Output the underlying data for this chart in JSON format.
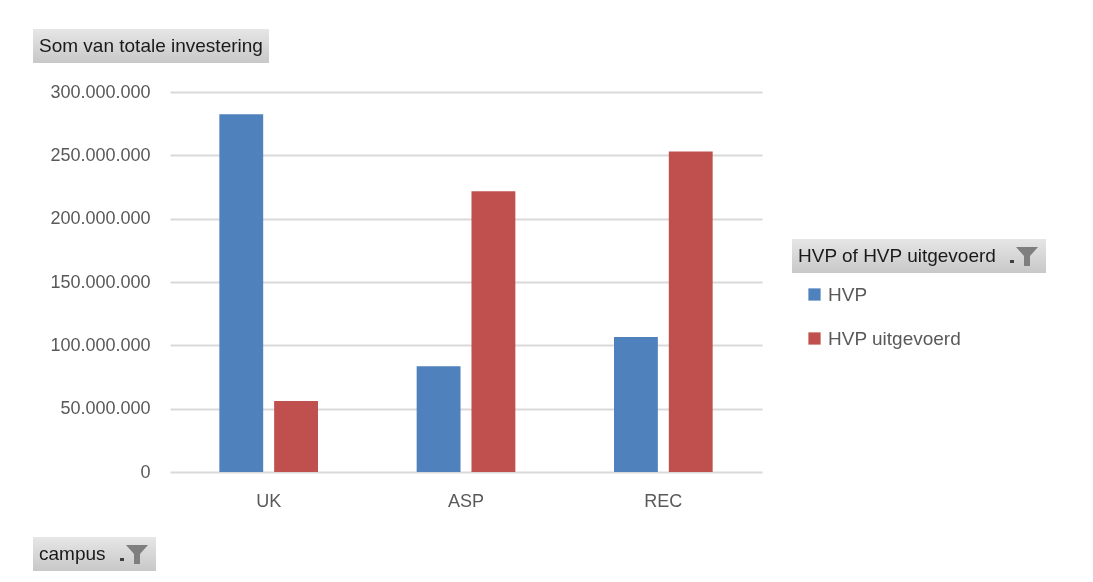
{
  "chart_data": {
    "type": "bar",
    "title": "Som van totale investering",
    "xlabel": "campus",
    "legend_title": "HVP of HVP uitgevoerd",
    "categories": [
      "UK",
      "ASP",
      "REC"
    ],
    "series": [
      {
        "name": "HVP",
        "color": "#4f81bd",
        "values": [
          282500000,
          83400000,
          106600000
        ]
      },
      {
        "name": "HVP uitgevoerd",
        "color": "#c0504d",
        "values": [
          56000000,
          221700000,
          253000000
        ]
      }
    ],
    "ylim": [
      0,
      300000000
    ],
    "yticks": [
      0,
      {
        "value": 50000000,
        "label": "50.000.000"
      },
      {
        "value": 100000000,
        "label": "100.000.000"
      },
      {
        "value": 150000000,
        "label": "150.000.000"
      },
      {
        "value": 200000000,
        "label": "200.000.000"
      },
      {
        "value": 250000000,
        "label": "250.000.000"
      },
      {
        "value": 300000000,
        "label": "300.000.000"
      }
    ],
    "grid": "y",
    "legend": "right"
  }
}
